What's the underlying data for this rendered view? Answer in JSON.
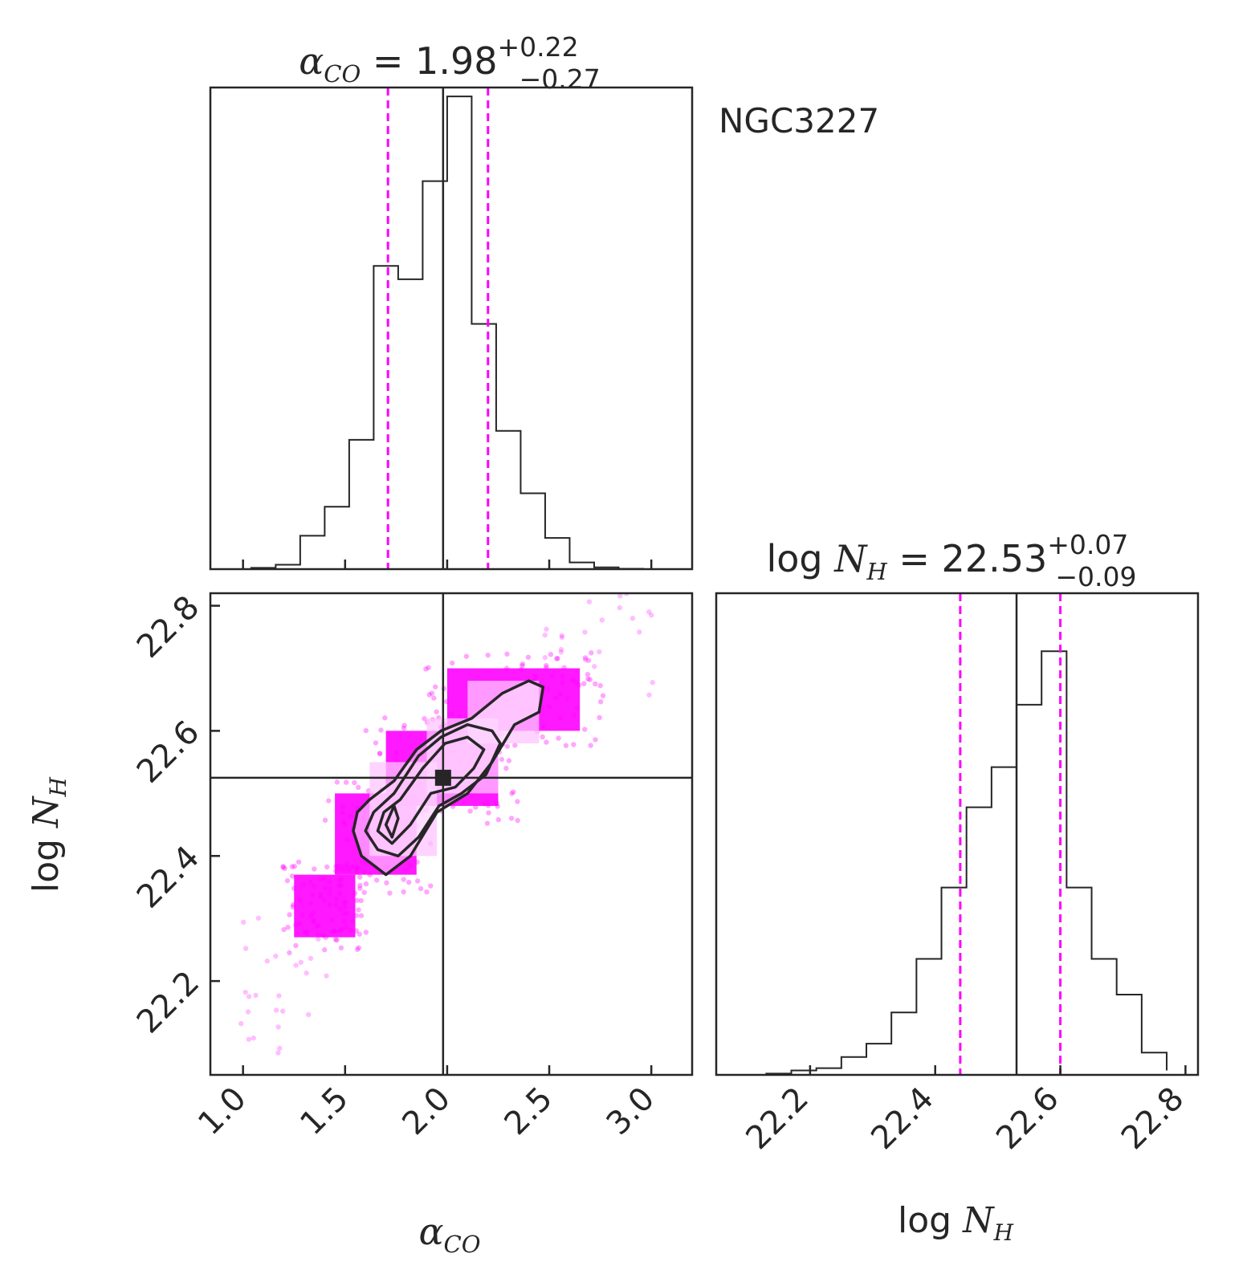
{
  "figure_label": "NGC3227",
  "colors": {
    "accent": "#ff00ff",
    "line": "#262626",
    "bg": "#ffffff"
  },
  "chart_data": [
    {
      "panel": "alpha_co_histogram",
      "type": "bar",
      "title_param": "α",
      "title_sub": "CO",
      "title_eq": " = 1.98",
      "title_err_plus": "+0.22",
      "title_err_minus": "−0.27",
      "median": 1.98,
      "quantiles": [
        1.71,
        2.2
      ],
      "xlim": [
        0.84,
        3.2
      ],
      "ylim": [
        0,
        108
      ],
      "ticks": [
        1.0,
        1.5,
        2.0,
        2.5,
        3.0
      ],
      "bin_edges": [
        1.04,
        1.16,
        1.28,
        1.4,
        1.52,
        1.64,
        1.76,
        1.88,
        2.0,
        2.12,
        2.24,
        2.36,
        2.48,
        2.6,
        2.72,
        2.84,
        2.96
      ],
      "counts": [
        0.3,
        1,
        7.5,
        14,
        29,
        68,
        65,
        87,
        106,
        55,
        31,
        17,
        7,
        1.5,
        0.4,
        0.1
      ]
    },
    {
      "panel": "logNH_histogram",
      "type": "bar",
      "title_prefix": "log ",
      "title_param": "N",
      "title_sub": "H",
      "title_eq": " = 22.53",
      "title_err_plus": "+0.07",
      "title_err_minus": "−0.09",
      "median": 22.53,
      "quantiles": [
        22.44,
        22.6
      ],
      "xlim": [
        22.05,
        22.82
      ],
      "ylim": [
        0,
        108
      ],
      "ticks": [
        22.2,
        22.4,
        22.6,
        22.8
      ],
      "tick_labels": [
        "22.2",
        "22.4",
        "22.6",
        "22.8"
      ],
      "bin_edges": [
        22.13,
        22.17,
        22.21,
        22.25,
        22.29,
        22.33,
        22.37,
        22.41,
        22.45,
        22.49,
        22.53,
        22.57,
        22.61,
        22.65,
        22.69,
        22.73,
        22.77
      ],
      "counts": [
        0.3,
        1,
        1.5,
        4,
        7,
        14,
        26,
        42,
        60,
        69,
        83,
        95,
        42,
        26,
        18,
        5,
        1
      ]
    },
    {
      "panel": "joint_scatter",
      "type": "scatter",
      "xlim": [
        0.84,
        3.2
      ],
      "ylim": [
        22.05,
        22.82
      ],
      "xticks": [
        1.0,
        1.5,
        2.0,
        2.5,
        3.0
      ],
      "xtick_labels": [
        "1.0",
        "1.5",
        "2.0",
        "2.5",
        "3.0"
      ],
      "yticks": [
        22.2,
        22.4,
        22.6,
        22.8
      ],
      "ytick_labels": [
        "22.2",
        "22.4",
        "22.6",
        "22.8"
      ],
      "xlabel_param": "α",
      "xlabel_sub": "CO",
      "ylabel_prefix": "log ",
      "ylabel_param": "N",
      "ylabel_sub": "H",
      "truth": [
        1.98,
        22.525
      ],
      "point_cloud": {
        "blocks": [
          {
            "x": [
              1.25,
              1.55
            ],
            "y": [
              22.27,
              22.37
            ],
            "n": 90
          },
          {
            "x": [
              1.45,
              1.85
            ],
            "y": [
              22.37,
              22.5
            ],
            "n": 90
          },
          {
            "x": [
              1.7,
              2.25
            ],
            "y": [
              22.48,
              22.6
            ],
            "n": 100
          },
          {
            "x": [
              2.0,
              2.65
            ],
            "y": [
              22.6,
              22.7
            ],
            "n": 100
          },
          {
            "x": [
              1.05,
              1.4
            ],
            "y": [
              22.12,
              22.27
            ],
            "n": 25
          },
          {
            "x": [
              2.55,
              2.95
            ],
            "y": [
              22.68,
              22.82
            ],
            "n": 25
          }
        ]
      },
      "contours": [
        [
          [
            1.54,
            22.44
          ],
          [
            1.58,
            22.4
          ],
          [
            1.7,
            22.37
          ],
          [
            1.82,
            22.4
          ],
          [
            1.95,
            22.47
          ],
          [
            2.1,
            22.5
          ],
          [
            2.22,
            22.55
          ],
          [
            2.33,
            22.61
          ],
          [
            2.45,
            22.63
          ],
          [
            2.47,
            22.67
          ],
          [
            2.4,
            22.68
          ],
          [
            2.27,
            22.66
          ],
          [
            2.12,
            22.62
          ],
          [
            1.97,
            22.6
          ],
          [
            1.85,
            22.57
          ],
          [
            1.74,
            22.52
          ],
          [
            1.62,
            22.49
          ],
          [
            1.56,
            22.47
          ]
        ],
        [
          [
            1.6,
            22.44
          ],
          [
            1.66,
            22.41
          ],
          [
            1.76,
            22.4
          ],
          [
            1.86,
            22.43
          ],
          [
            1.96,
            22.48
          ],
          [
            2.07,
            22.5
          ],
          [
            2.19,
            22.53
          ],
          [
            2.26,
            22.58
          ],
          [
            2.22,
            22.6
          ],
          [
            2.1,
            22.61
          ],
          [
            1.97,
            22.59
          ],
          [
            1.86,
            22.56
          ],
          [
            1.74,
            22.5
          ],
          [
            1.64,
            22.47
          ]
        ],
        [
          [
            1.66,
            22.44
          ],
          [
            1.73,
            22.42
          ],
          [
            1.82,
            22.45
          ],
          [
            1.92,
            22.5
          ],
          [
            2.04,
            22.51
          ],
          [
            2.13,
            22.54
          ],
          [
            2.18,
            22.57
          ],
          [
            2.1,
            22.59
          ],
          [
            1.99,
            22.58
          ],
          [
            1.88,
            22.54
          ],
          [
            1.77,
            22.49
          ],
          [
            1.69,
            22.47
          ]
        ],
        [
          [
            1.7,
            22.45
          ],
          [
            1.73,
            22.43
          ],
          [
            1.76,
            22.46
          ],
          [
            1.74,
            22.48
          ]
        ]
      ]
    }
  ]
}
